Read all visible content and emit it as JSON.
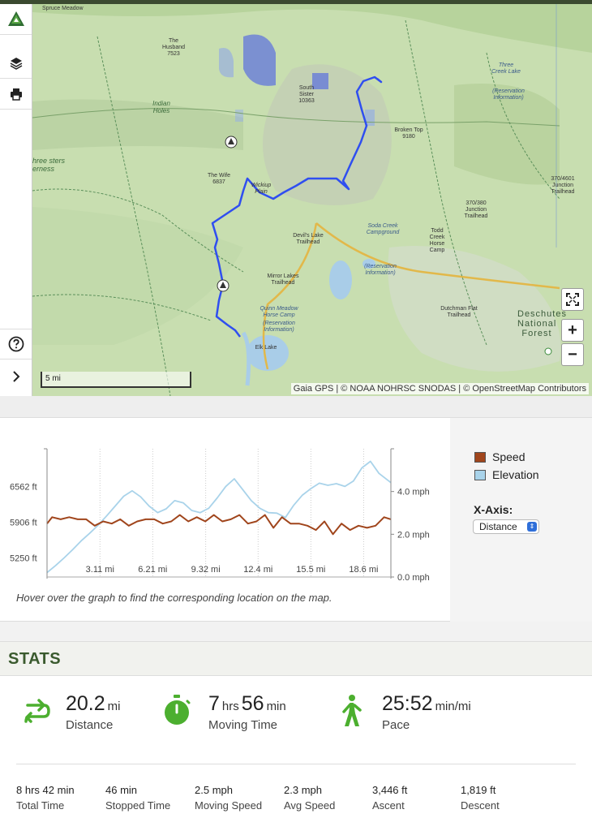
{
  "map": {
    "attribution": "Gaia GPS | © NOAA NOHRSC SNODAS | © OpenStreetMap Contributors",
    "scale_label": "5 mi",
    "labels": {
      "spruce_meadow": "Spruce Meadow",
      "the_husband": "The Husband",
      "the_husband_elev": "7523",
      "indian_holes": "Indian Holes",
      "south_sister": "South Sister",
      "south_sister_elev": "10363",
      "three_creek_lake": "Three Creek Lake",
      "reservation_info": "(Reservation Information)",
      "broken_top": "Broken Top",
      "broken_top_elev": "9180",
      "three_sisters_wilderness": "hree sters erness",
      "the_wife": "The Wife",
      "the_wife_elev": "6837",
      "wickiup_plain": "Wickiup Plain",
      "junction_370_4601": "370/4601 Junction Trailhead",
      "junction_370_380": "370/380 Junction Trailhead",
      "devils_lake": "Devil's Lake Trailhead",
      "soda_creek": "Soda Creek Campground",
      "todd_creek": "Todd Creek Horse Camp",
      "mirror_lakes": "Mirror Lakes Trailhead",
      "quinn_meadow": "Quinn Meadow Horse Camp",
      "dutchman_flat": "Dutchman Flat Trailhead",
      "deschutes_forest": "Deschutes National Forest",
      "elk_lake": "Elk Lake"
    }
  },
  "toolbar": {
    "logo_icon": "gaia-logo-icon",
    "layers_icon": "layers-icon",
    "print_icon": "print-icon",
    "help_icon": "help-icon",
    "expand_icon": "chevron-right-icon"
  },
  "controls": {
    "zoom_in": "+",
    "zoom_out": "−"
  },
  "chart_data": {
    "type": "line",
    "x_ticks": [
      "3.11 mi",
      "6.21 mi",
      "9.32 mi",
      "12.4 mi",
      "15.5 mi",
      "18.6 mi"
    ],
    "y_left_ticks": [
      "6562 ft",
      "5906 ft",
      "5250 ft"
    ],
    "y_right_ticks": [
      "4.0 mph",
      "2.0 mph",
      "0.0 mph"
    ],
    "xlim": [
      0,
      20.2
    ],
    "y_left_lim": [
      4900,
      7250
    ],
    "y_right_lim": [
      0,
      6
    ],
    "legend_position": "right",
    "series": [
      {
        "name": "Speed",
        "color": "#a0451c",
        "axis": "right",
        "x": [
          0,
          0.3,
          0.8,
          1.3,
          1.8,
          2.3,
          2.8,
          3.3,
          3.8,
          4.3,
          4.8,
          5.3,
          5.8,
          6.3,
          6.8,
          7.3,
          7.8,
          8.3,
          8.8,
          9.3,
          9.8,
          10.3,
          10.8,
          11.3,
          11.8,
          12.3,
          12.8,
          13.3,
          13.8,
          14.3,
          14.8,
          15.3,
          15.8,
          16.3,
          16.8,
          17.3,
          17.8,
          18.3,
          18.8,
          19.3,
          19.8,
          20.2
        ],
        "y": [
          2.5,
          2.8,
          2.7,
          2.8,
          2.7,
          2.7,
          2.4,
          2.6,
          2.5,
          2.7,
          2.4,
          2.6,
          2.7,
          2.7,
          2.5,
          2.6,
          2.9,
          2.6,
          2.8,
          2.6,
          2.9,
          2.6,
          2.7,
          2.9,
          2.5,
          2.6,
          2.9,
          2.3,
          2.8,
          2.5,
          2.5,
          2.4,
          2.2,
          2.6,
          2.0,
          2.5,
          2.2,
          2.4,
          2.3,
          2.4,
          2.8,
          2.7
        ]
      },
      {
        "name": "Elevation",
        "color": "#a9d3ea",
        "axis": "left",
        "x": [
          0,
          0.5,
          1.0,
          1.5,
          2.0,
          2.5,
          3.0,
          3.5,
          4.0,
          4.5,
          5.0,
          5.5,
          6.0,
          6.5,
          7.0,
          7.5,
          8.0,
          8.5,
          9.0,
          9.5,
          10.0,
          10.5,
          11.0,
          11.5,
          12.0,
          12.5,
          13.0,
          13.5,
          14.0,
          14.5,
          15.0,
          15.5,
          16.0,
          16.5,
          17.0,
          17.5,
          18.0,
          18.5,
          19.0,
          19.5,
          20.2
        ],
        "y": [
          4980,
          5110,
          5250,
          5400,
          5560,
          5700,
          5850,
          6020,
          6200,
          6380,
          6480,
          6370,
          6200,
          6080,
          6150,
          6300,
          6260,
          6120,
          6080,
          6160,
          6350,
          6560,
          6700,
          6500,
          6300,
          6160,
          6080,
          6070,
          5990,
          6220,
          6400,
          6520,
          6620,
          6580,
          6610,
          6560,
          6660,
          6900,
          7020,
          6800,
          6630
        ]
      }
    ]
  },
  "graph": {
    "legend_speed": "Speed",
    "legend_elevation": "Elevation",
    "xaxis_label": "X-Axis:",
    "xaxis_value": "Distance",
    "hover_hint": "Hover over the graph to find the corresponding location on the map."
  },
  "stats": {
    "header": "STATS",
    "big": [
      {
        "value": "20.2",
        "unit": "mi",
        "value2": "",
        "unit2": "",
        "label": "Distance",
        "icon": "route-icon"
      },
      {
        "value": "7",
        "unit": "hrs",
        "value2": "56",
        "unit2": "min",
        "label": "Moving Time",
        "icon": "stopwatch-icon"
      },
      {
        "value": "25:52",
        "unit": "min/mi",
        "value2": "",
        "unit2": "",
        "label": "Pace",
        "icon": "hiker-icon"
      }
    ],
    "small": [
      {
        "value": "8",
        "unit": "hrs",
        "value2": "42",
        "unit2": "min",
        "label": "Total Time"
      },
      {
        "value": "46",
        "unit": "min",
        "value2": "",
        "unit2": "",
        "label": "Stopped Time"
      },
      {
        "value": "2.5",
        "unit": "mph",
        "value2": "",
        "unit2": "",
        "label": "Moving Speed"
      },
      {
        "value": "2.3",
        "unit": "mph",
        "value2": "",
        "unit2": "",
        "label": "Avg Speed"
      },
      {
        "value": "3,446",
        "unit": "ft",
        "value2": "",
        "unit2": "",
        "label": "Ascent"
      },
      {
        "value": "1,819",
        "unit": "ft",
        "value2": "",
        "unit2": "",
        "label": "Descent"
      }
    ],
    "accent_color": "#4caf2f"
  }
}
